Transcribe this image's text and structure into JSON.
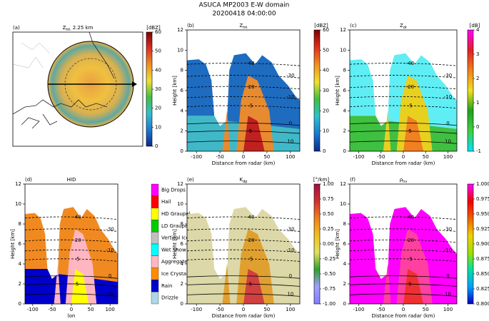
{
  "title": "ASUCA MP2003 E-W domain",
  "subtitle": "20200418 04:00:00",
  "cross_section_axes": {
    "xlim": [
      -120,
      120
    ],
    "xticks": [
      -100,
      -50,
      0,
      50,
      100
    ],
    "ylim": [
      0,
      12
    ],
    "yticks": [
      0,
      2,
      4,
      6,
      8,
      10,
      12
    ]
  },
  "contour_levels": [
    -40,
    -30,
    -20,
    -10,
    -5,
    0,
    5,
    10
  ],
  "panels": [
    {
      "label": "(a)",
      "title": {
        "main": "Z",
        "sub": "hh",
        "rest": "2.25 km"
      },
      "colorbar": {
        "unit": "[dBZ]",
        "lim": [
          0,
          60
        ],
        "ticks": [
          0,
          10,
          20,
          30,
          40,
          50,
          60
        ]
      }
    },
    {
      "label": "(b)",
      "title": {
        "main": "Z",
        "sub": "hh"
      },
      "xlabel": "Distance from radar (km)",
      "ylabel": "Height [km]",
      "colorbar": {
        "unit": "[dBZ]",
        "lim": [
          0,
          60
        ],
        "ticks": [
          0,
          10,
          20,
          30,
          40,
          50,
          60
        ]
      }
    },
    {
      "label": "(c)",
      "title": {
        "main": "Z",
        "sub": "dr"
      },
      "xlabel": "Distance from radar (km)",
      "ylabel": "Height [km]",
      "colorbar": {
        "unit": "[dB]",
        "lim": [
          -1,
          4
        ],
        "ticks": [
          -1,
          0,
          1,
          2,
          3,
          4
        ]
      }
    },
    {
      "label": "(d)",
      "title": {
        "main": "HID"
      },
      "xlabel": "lon",
      "ylabel": "Height [km]",
      "legend": [
        {
          "name": "Big Drops",
          "color": "#ff00ff"
        },
        {
          "name": "Hail",
          "color": "#ff0000"
        },
        {
          "name": "HD Graupel",
          "color": "#ffff00"
        },
        {
          "name": "LD Graupel",
          "color": "#00cc00"
        },
        {
          "name": "Vertical Ice",
          "color": "#c0c0c0"
        },
        {
          "name": "Wet Snow",
          "color": "#00ffff"
        },
        {
          "name": "Aggregates",
          "color": "#ffb6c1"
        },
        {
          "name": "Ice Crystals",
          "color": "#ff8c00"
        },
        {
          "name": "Rain",
          "color": "#0000cd"
        },
        {
          "name": "Drizzle",
          "color": "#add8e6"
        }
      ]
    },
    {
      "label": "(e)",
      "title": {
        "main": "K",
        "sub": "dp"
      },
      "xlabel": "Distance from radar (km)",
      "ylabel": "Height [km]",
      "colorbar": {
        "unit": "[°/km]",
        "lim": [
          -1,
          1
        ],
        "ticks": [
          {
            "value": -1,
            "label": "-1.00"
          },
          {
            "value": -0.75,
            "label": "-0.75"
          },
          {
            "value": -0.5,
            "label": "-0.50"
          },
          {
            "value": -0.25,
            "label": "-0.25"
          },
          {
            "value": 0,
            "label": "0.00"
          },
          {
            "value": 0.25,
            "label": "0.25"
          },
          {
            "value": 0.5,
            "label": "0.50"
          },
          {
            "value": 0.75,
            "label": "0.75"
          },
          {
            "value": 1,
            "label": "1.00"
          }
        ]
      }
    },
    {
      "label": "(f)",
      "title": {
        "main": "ρ",
        "sub": "hv"
      },
      "xlabel": "Distance from radar (km)",
      "ylabel": "Height [km]",
      "colorbar": {
        "lim": [
          0.8,
          1
        ],
        "ticks": [
          {
            "value": 0.8,
            "label": "0.800"
          },
          {
            "value": 0.825,
            "label": "0.825"
          },
          {
            "value": 0.85,
            "label": "0.850"
          },
          {
            "value": 0.875,
            "label": "0.875"
          },
          {
            "value": 0.9,
            "label": "0.900"
          },
          {
            "value": 0.925,
            "label": "0.925"
          },
          {
            "value": 0.95,
            "label": "0.950"
          },
          {
            "value": 0.975,
            "label": "0.975"
          },
          {
            "value": 1,
            "label": "1.000"
          }
        ]
      }
    }
  ]
}
